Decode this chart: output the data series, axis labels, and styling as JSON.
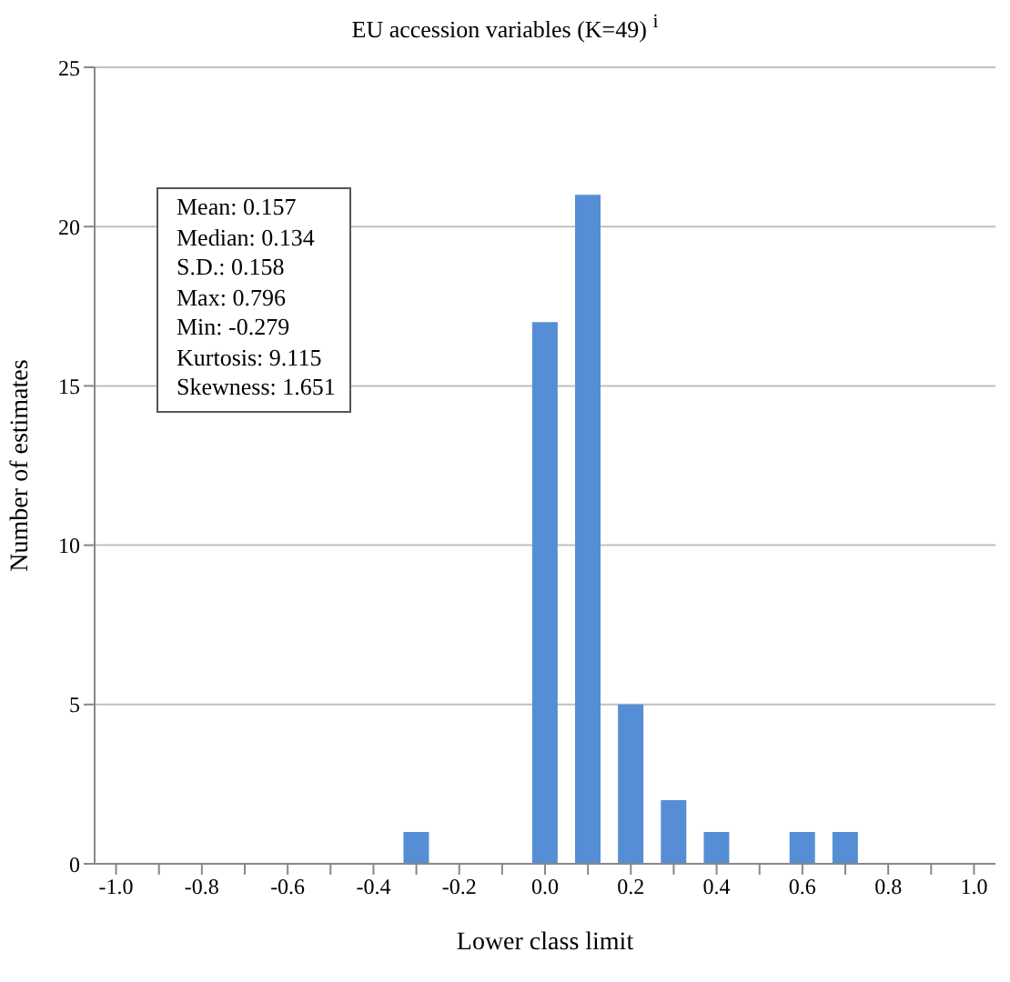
{
  "chart_data": {
    "type": "bar",
    "title": "EU accession variables (K=49) $^{i}$",
    "xlabel": "Lower class limit",
    "ylabel": "Number of estimates",
    "categories": [
      "-1.0",
      null,
      "-0.8",
      null,
      "-0.6",
      null,
      "-0.4",
      null,
      "-0.2",
      null,
      "0.0",
      null,
      "0.2",
      null,
      "0.4",
      null,
      "0.6",
      null,
      "0.8",
      null,
      "1.0"
    ],
    "values": [
      0,
      0,
      0,
      0,
      0,
      0,
      0,
      1,
      0,
      0,
      17,
      21,
      5,
      2,
      1,
      0,
      1,
      1,
      0,
      0,
      0
    ],
    "color": "#558ed5",
    "ylim": [
      0,
      25
    ],
    "yticks": [
      0,
      5,
      10,
      15,
      20,
      25
    ],
    "grid": "y",
    "legend": false,
    "annotations": [
      "Mean: 0.157",
      "Median: 0.134",
      "S.D.: 0.158",
      "Max: 0.796",
      "Min: -0.279",
      "Kurtosis: 9.115",
      "Skewness: 1.651"
    ]
  }
}
